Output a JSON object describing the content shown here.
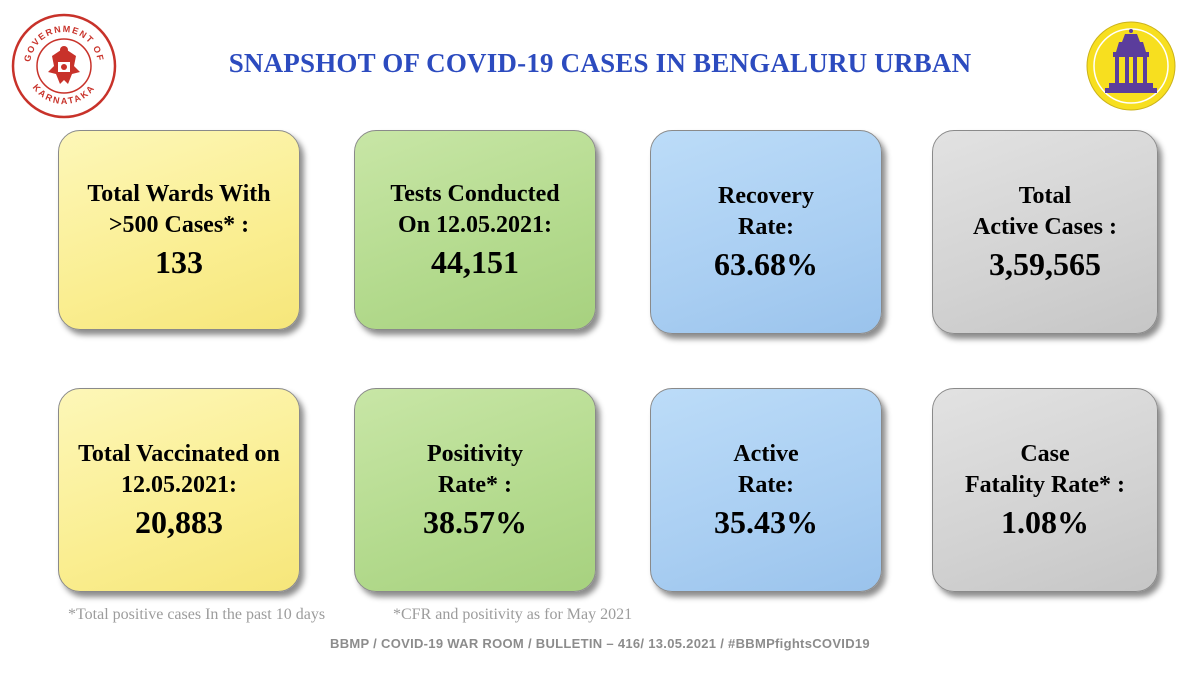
{
  "header": {
    "title": "SNAPSHOT OF COVID-19 CASES IN BENGALURU URBAN",
    "seal_text": "GOVERNMENT OF KARNATAKA"
  },
  "cards_row1": [
    {
      "label": "Total Wards With\n>500 Cases* :",
      "value": "133",
      "color": "#faee91"
    },
    {
      "label": "Tests Conducted\nOn 12.05.2021:",
      "value": "44,151",
      "color": "#b3da8d"
    },
    {
      "label": "Recovery\nRate:",
      "value": "63.68%",
      "color": "#a9cef2"
    },
    {
      "label": "Total\nActive Cases :",
      "value": "3,59,565",
      "color": "#d2d2d2"
    }
  ],
  "cards_row2": [
    {
      "label": "Total Vaccinated on\n12.05.2021:",
      "value": "20,883",
      "color": "#faee91"
    },
    {
      "label": "Positivity\nRate* :",
      "value": "38.57%",
      "color": "#b3da8d"
    },
    {
      "label": "Active\nRate:",
      "value": "35.43%",
      "color": "#a9cef2"
    },
    {
      "label": "Case\nFatality Rate* :",
      "value": "1.08%",
      "color": "#d2d2d2"
    }
  ],
  "footnotes": {
    "note1": "*Total positive cases In the past 10 days",
    "note2": "*CFR and positivity as for May 2021"
  },
  "footer": {
    "bulletin": "BBMP / COVID-19 WAR ROOM / BULLETIN – 416/ 13.05.2021 / #BBMPfightsCOVID19"
  }
}
